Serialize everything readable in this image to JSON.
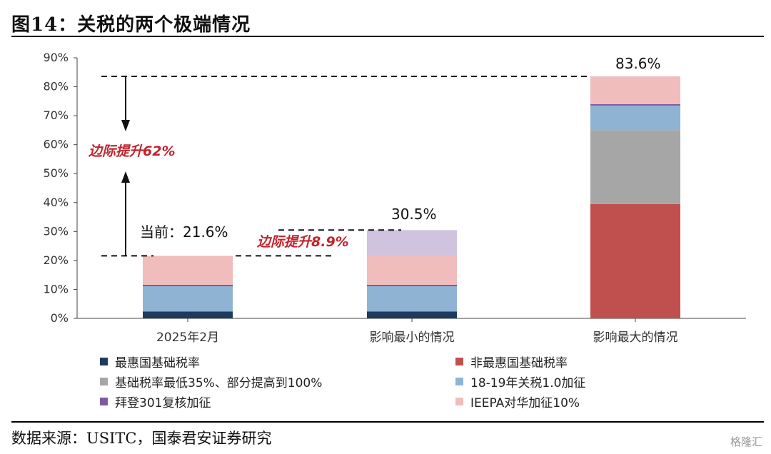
{
  "header": {
    "title": "图14：关税的两个极端情况"
  },
  "footer": {
    "source": "数据来源：USITC，国泰君安证券研究",
    "watermark": "格隆汇"
  },
  "annotations": {
    "current": "当前：21.6%",
    "total_min": "30.5%",
    "total_max": "83.6%",
    "increase_62": "边际提升62%",
    "increase_8_9": "边际提升8.9%"
  },
  "legend": {
    "items": [
      {
        "label": "最惠国基础税率",
        "color": "#1f3a5f"
      },
      {
        "label": "非最惠国基础税率",
        "color": "#c0504d"
      },
      {
        "label": "基础税率最低35%、部分提高到100%",
        "color": "#a6a6a6"
      },
      {
        "label": "18-19年关税1.0加征",
        "color": "#8fb4d3"
      },
      {
        "label": "拜登301复核加征",
        "color": "#7e5aa2"
      },
      {
        "label": "IEEPA对华加征10%",
        "color": "#f0bcbc"
      }
    ]
  },
  "chart_data": {
    "type": "bar",
    "stacked": true,
    "categories": [
      "2025年2月",
      "影响最小的情况",
      "影响最大的情况"
    ],
    "ylim": [
      0,
      90
    ],
    "yticks": [
      "0%",
      "10%",
      "20%",
      "30%",
      "40%",
      "50%",
      "60%",
      "70%",
      "80%",
      "90%"
    ],
    "series": [
      {
        "name": "最惠国基础税率",
        "color": "#1f3a5f",
        "values": [
          2.4,
          2.4,
          0
        ]
      },
      {
        "name": "非最惠国基础税率",
        "color": "#c0504d",
        "values": [
          0,
          0,
          39.5
        ]
      },
      {
        "name": "基础税率最低35%、部分提高到100%",
        "color": "#a6a6a6",
        "values": [
          0,
          0,
          25.5
        ]
      },
      {
        "name": "18-19年关税1.0加征",
        "color": "#8fb4d3",
        "values": [
          8.7,
          8.7,
          8.5
        ]
      },
      {
        "name": "拜登301复核加征",
        "color": "#7e5aa2",
        "values": [
          0.5,
          0.5,
          0.5
        ]
      },
      {
        "name": "IEEPA对华加征10%",
        "color": "#f0bcbc",
        "values": [
          10.0,
          10.0,
          9.6
        ]
      },
      {
        "name": "",
        "color": "#cfc3e0",
        "values": [
          0,
          8.9,
          0
        ]
      }
    ]
  }
}
